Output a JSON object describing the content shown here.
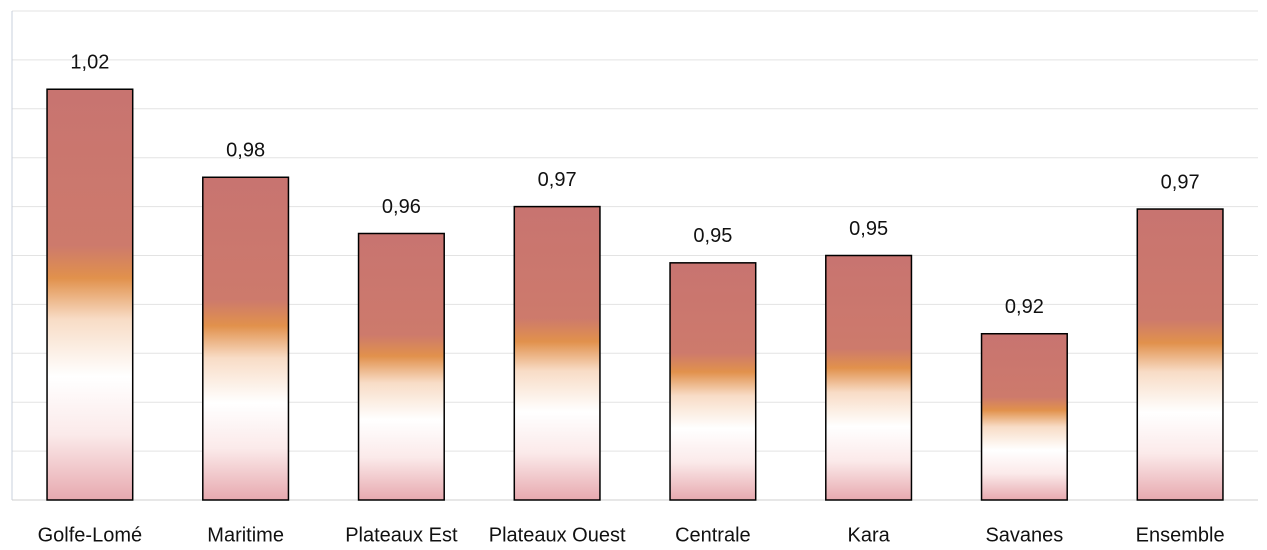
{
  "chart_data": {
    "type": "bar",
    "categories": [
      "Golfe-Lomé",
      "Maritime",
      "Plateaux Est",
      "Plateaux Ouest",
      "Centrale",
      "Kara",
      "Savanes",
      "Ensemble"
    ],
    "values": [
      1.018,
      0.982,
      0.959,
      0.97,
      0.947,
      0.95,
      0.918,
      0.969
    ],
    "value_labels": [
      "1,02",
      "0,98",
      "0,96",
      "0,97",
      "0,95",
      "0,95",
      "0,92",
      "0,97"
    ],
    "color": "#c87470",
    "ylim": [
      0.85,
      1.05
    ],
    "yticks": [
      0.85,
      0.87,
      0.89,
      0.91,
      0.93,
      0.95,
      0.97,
      0.99,
      1.01,
      1.03,
      1.05
    ],
    "grid": true
  }
}
